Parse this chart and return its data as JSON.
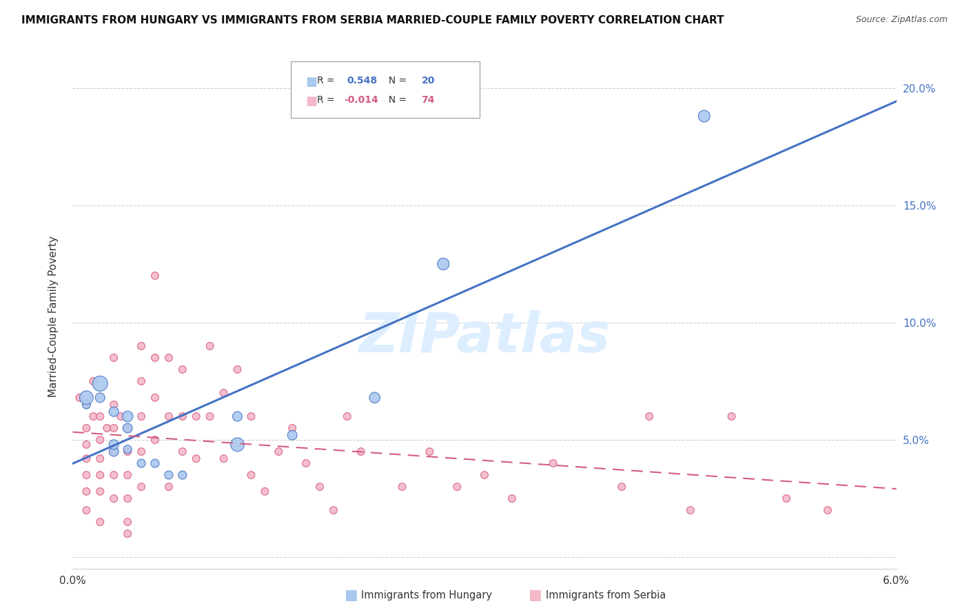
{
  "title": "IMMIGRANTS FROM HUNGARY VS IMMIGRANTS FROM SERBIA MARRIED-COUPLE FAMILY POVERTY CORRELATION CHART",
  "source": "Source: ZipAtlas.com",
  "ylabel": "Married-Couple Family Poverty",
  "xlim": [
    0.0,
    0.06
  ],
  "ylim": [
    -0.005,
    0.21
  ],
  "yticks": [
    0.0,
    0.05,
    0.1,
    0.15,
    0.2
  ],
  "ytick_labels": [
    "",
    "5.0%",
    "10.0%",
    "15.0%",
    "20.0%"
  ],
  "xticks": [
    0.0,
    0.01,
    0.02,
    0.03,
    0.04,
    0.05,
    0.06
  ],
  "xtick_labels": [
    "0.0%",
    "",
    "",
    "",
    "",
    "",
    "6.0%"
  ],
  "hungary_color": "#aac8ee",
  "hungary_edge_color": "#4472c4",
  "serbia_color": "#f4b8c8",
  "serbia_edge_color": "#d45c80",
  "hungary_line_color": "#4472c4",
  "serbia_line_color": "#d45c80",
  "watermark": "ZIPatlas",
  "watermark_color": "#ddeeff",
  "hungary_scatter_x": [
    0.001,
    0.001,
    0.002,
    0.002,
    0.003,
    0.003,
    0.003,
    0.004,
    0.004,
    0.004,
    0.005,
    0.006,
    0.007,
    0.008,
    0.012,
    0.012,
    0.016,
    0.022,
    0.027,
    0.046
  ],
  "hungary_scatter_y": [
    0.065,
    0.068,
    0.074,
    0.068,
    0.045,
    0.048,
    0.062,
    0.06,
    0.046,
    0.055,
    0.04,
    0.04,
    0.035,
    0.035,
    0.06,
    0.048,
    0.052,
    0.068,
    0.125,
    0.188
  ],
  "hungary_scatter_size": [
    30,
    80,
    100,
    40,
    40,
    40,
    40,
    50,
    30,
    40,
    30,
    30,
    30,
    30,
    40,
    80,
    40,
    50,
    60,
    60
  ],
  "serbia_scatter_x": [
    0.0005,
    0.001,
    0.001,
    0.001,
    0.001,
    0.001,
    0.001,
    0.001,
    0.0015,
    0.0015,
    0.002,
    0.002,
    0.002,
    0.002,
    0.002,
    0.002,
    0.0025,
    0.003,
    0.003,
    0.003,
    0.003,
    0.003,
    0.003,
    0.0035,
    0.004,
    0.004,
    0.004,
    0.004,
    0.004,
    0.004,
    0.005,
    0.005,
    0.005,
    0.005,
    0.005,
    0.006,
    0.006,
    0.006,
    0.006,
    0.007,
    0.007,
    0.007,
    0.008,
    0.008,
    0.008,
    0.009,
    0.009,
    0.01,
    0.01,
    0.011,
    0.011,
    0.012,
    0.013,
    0.013,
    0.014,
    0.015,
    0.016,
    0.017,
    0.018,
    0.019,
    0.02,
    0.021,
    0.024,
    0.026,
    0.028,
    0.03,
    0.032,
    0.035,
    0.04,
    0.042,
    0.045,
    0.048,
    0.052,
    0.055
  ],
  "serbia_scatter_y": [
    0.068,
    0.065,
    0.055,
    0.048,
    0.042,
    0.035,
    0.028,
    0.02,
    0.06,
    0.075,
    0.06,
    0.05,
    0.042,
    0.035,
    0.028,
    0.015,
    0.055,
    0.085,
    0.065,
    0.055,
    0.045,
    0.035,
    0.025,
    0.06,
    0.055,
    0.045,
    0.035,
    0.025,
    0.015,
    0.01,
    0.09,
    0.075,
    0.06,
    0.045,
    0.03,
    0.12,
    0.085,
    0.068,
    0.05,
    0.03,
    0.085,
    0.06,
    0.045,
    0.08,
    0.06,
    0.042,
    0.06,
    0.09,
    0.06,
    0.07,
    0.042,
    0.08,
    0.06,
    0.035,
    0.028,
    0.045,
    0.055,
    0.04,
    0.03,
    0.02,
    0.06,
    0.045,
    0.03,
    0.045,
    0.03,
    0.035,
    0.025,
    0.04,
    0.03,
    0.06,
    0.02,
    0.06,
    0.025,
    0.02
  ],
  "serbia_scatter_size": [
    30,
    30,
    30,
    30,
    30,
    30,
    30,
    30,
    30,
    30,
    30,
    30,
    30,
    30,
    30,
    30,
    30,
    30,
    30,
    30,
    30,
    30,
    30,
    30,
    30,
    30,
    30,
    30,
    30,
    30,
    30,
    30,
    30,
    30,
    30,
    30,
    30,
    30,
    30,
    30,
    30,
    30,
    30,
    30,
    30,
    30,
    30,
    30,
    30,
    30,
    30,
    30,
    30,
    30,
    30,
    30,
    30,
    30,
    30,
    30,
    30,
    30,
    30,
    30,
    30,
    30,
    30,
    30,
    30,
    30,
    30,
    30,
    30,
    30
  ]
}
